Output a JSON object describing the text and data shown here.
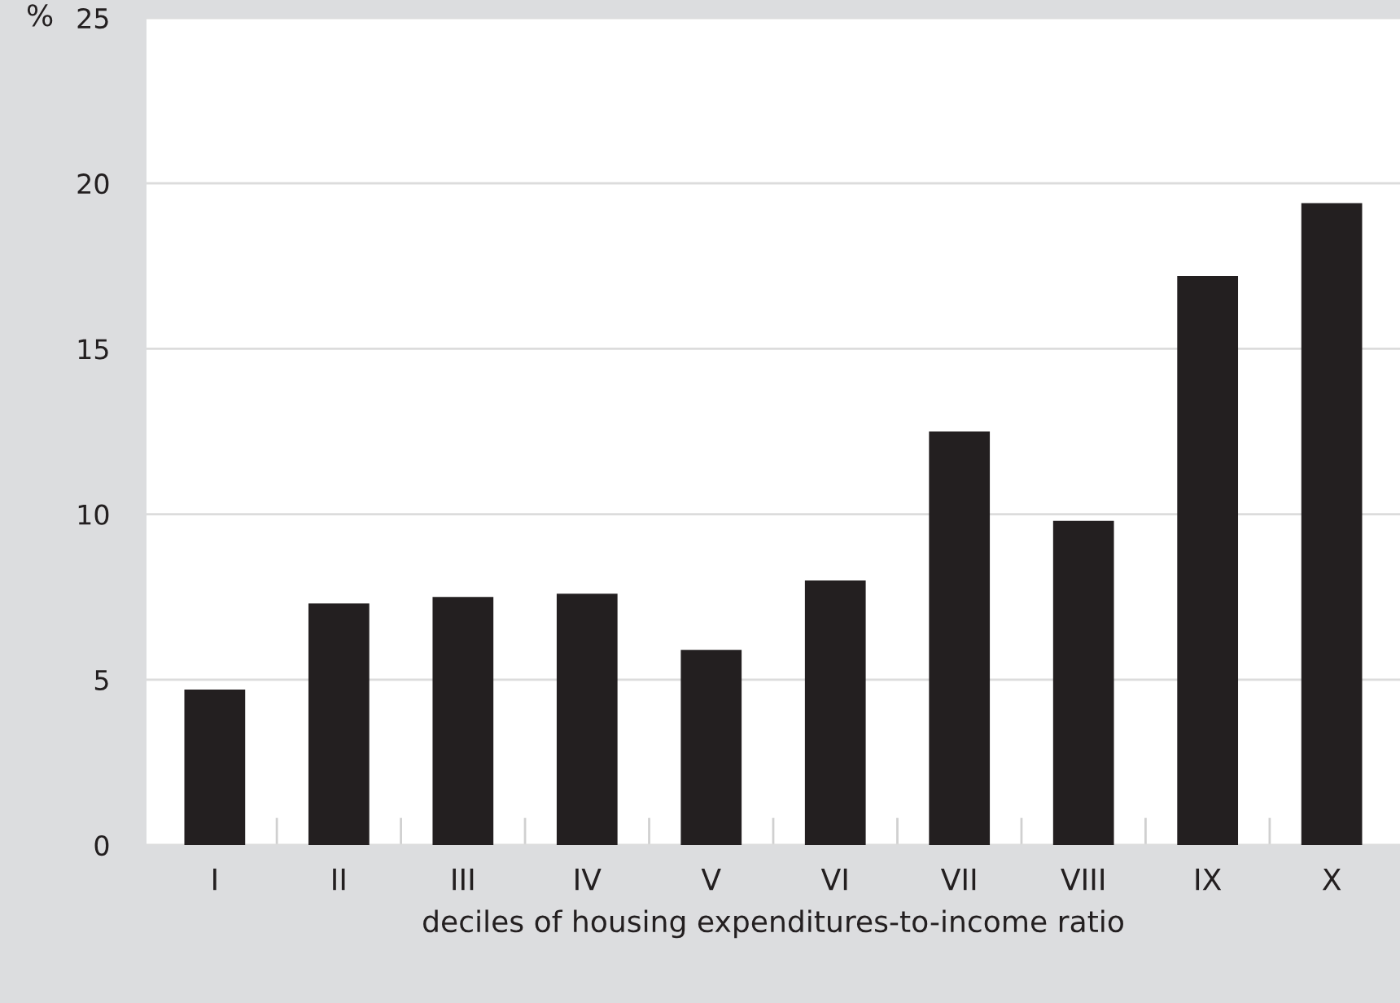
{
  "chart_data": {
    "type": "bar",
    "xlabel": "deciles of housing expenditures-to-income ratio",
    "ylabel": "%",
    "categories": [
      "I",
      "II",
      "III",
      "IV",
      "V",
      "VI",
      "VII",
      "VIII",
      "IX",
      "X"
    ],
    "values": [
      4.7,
      7.3,
      7.5,
      7.6,
      5.9,
      8.0,
      12.5,
      9.8,
      17.2,
      19.4
    ],
    "color": "#231f20",
    "ylim": [
      0,
      25
    ],
    "yticks": [
      0,
      5,
      10,
      15,
      20,
      25
    ],
    "grid": "y",
    "legend": false
  }
}
